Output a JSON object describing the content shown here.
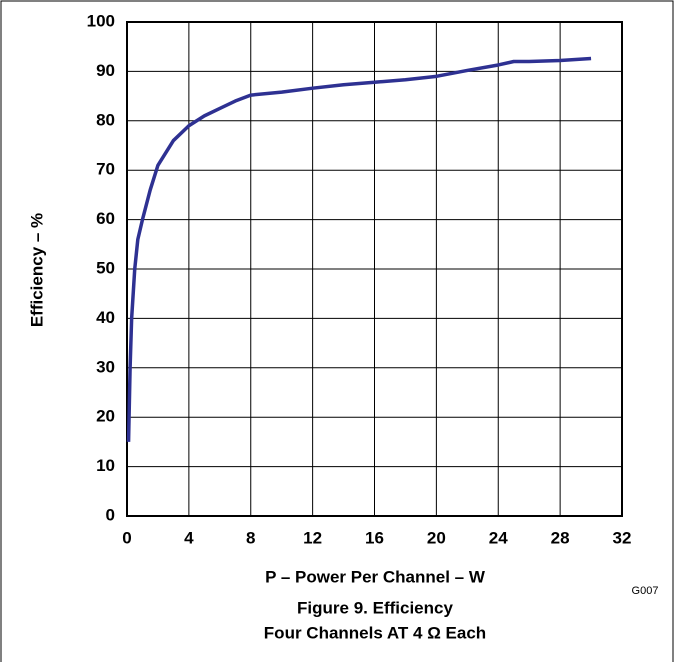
{
  "chart_data": {
    "type": "line",
    "title": "Figure 9. Efficiency",
    "subtitle": "Four Channels AT 4 Ω Each",
    "x_label": "P – Power Per Channel – W",
    "y_label": "Efficiency – %",
    "annotation": "G007",
    "x": [
      0.1,
      0.2,
      0.3,
      0.5,
      0.7,
      1,
      1.5,
      2,
      3,
      4,
      5,
      6,
      7,
      8,
      10,
      12,
      14,
      16,
      18,
      20,
      22,
      24,
      25,
      26,
      28,
      30
    ],
    "series": [
      {
        "name": "Efficiency",
        "color": "#2e3192",
        "values": [
          15,
          30,
          40,
          50,
          56,
          60,
          66,
          71,
          76,
          79,
          81,
          82.5,
          84,
          85.2,
          85.8,
          86.6,
          87.3,
          87.8,
          88.3,
          89,
          90.2,
          91.3,
          92,
          92,
          92.2,
          92.6
        ]
      }
    ],
    "xlim": [
      0,
      32
    ],
    "xticks": [
      0,
      4,
      8,
      12,
      16,
      20,
      24,
      28,
      32
    ],
    "ylim": [
      0,
      100
    ],
    "yticks": [
      0,
      10,
      20,
      30,
      40,
      50,
      60,
      70,
      80,
      90,
      100
    ],
    "grid": true
  }
}
